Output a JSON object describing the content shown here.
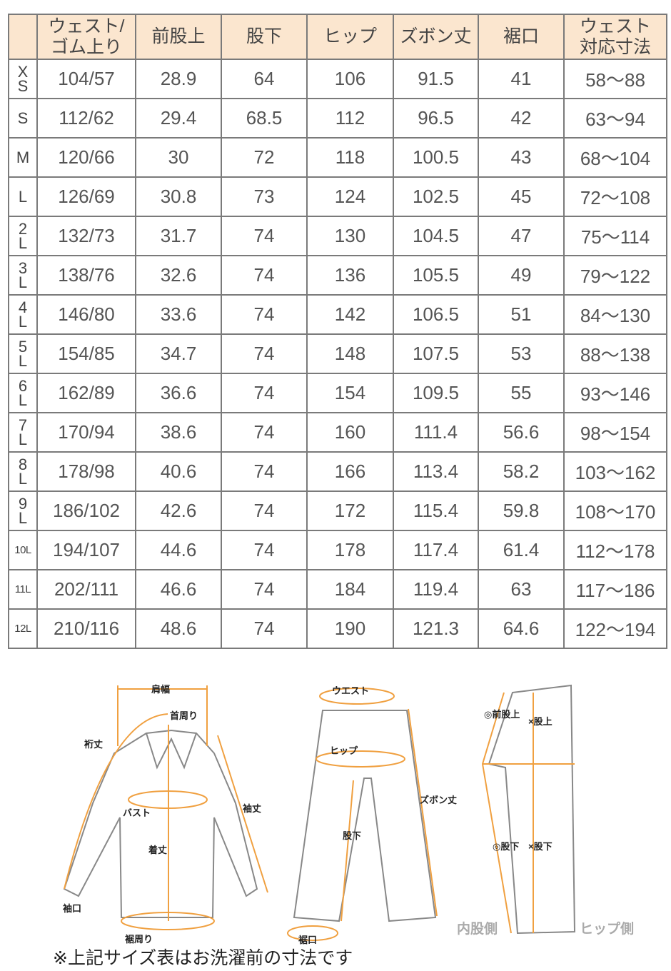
{
  "table": {
    "headers": [
      "",
      "ウェスト/\nゴム上り",
      "前股上",
      "股下",
      "ヒップ",
      "ズボン丈",
      "裾口",
      "ウェスト\n対応寸法"
    ],
    "rows": [
      [
        "XS",
        "104/57",
        "28.9",
        "64",
        "106",
        "91.5",
        "41",
        "58〜88"
      ],
      [
        "S",
        "112/62",
        "29.4",
        "68.5",
        "112",
        "96.5",
        "42",
        "63〜94"
      ],
      [
        "M",
        "120/66",
        "30",
        "72",
        "118",
        "100.5",
        "43",
        "68〜104"
      ],
      [
        "L",
        "126/69",
        "30.8",
        "73",
        "124",
        "102.5",
        "45",
        "72〜108"
      ],
      [
        "2L",
        "132/73",
        "31.7",
        "74",
        "130",
        "104.5",
        "47",
        "75〜114"
      ],
      [
        "3L",
        "138/76",
        "32.6",
        "74",
        "136",
        "105.5",
        "49",
        "79〜122"
      ],
      [
        "4L",
        "146/80",
        "33.6",
        "74",
        "142",
        "106.5",
        "51",
        "84〜130"
      ],
      [
        "5L",
        "154/85",
        "34.7",
        "74",
        "148",
        "107.5",
        "53",
        "88〜138"
      ],
      [
        "6L",
        "162/89",
        "36.6",
        "74",
        "154",
        "109.5",
        "55",
        "93〜146"
      ],
      [
        "7L",
        "170/94",
        "38.6",
        "74",
        "160",
        "111.4",
        "56.6",
        "98〜154"
      ],
      [
        "8L",
        "178/98",
        "40.6",
        "74",
        "166",
        "113.4",
        "58.2",
        "103〜162"
      ],
      [
        "9L",
        "186/102",
        "42.6",
        "74",
        "172",
        "115.4",
        "59.8",
        "108〜170"
      ],
      [
        "10L",
        "194/107",
        "44.6",
        "74",
        "178",
        "117.4",
        "61.4",
        "112〜178"
      ],
      [
        "11L",
        "202/111",
        "46.6",
        "74",
        "184",
        "119.4",
        "63",
        "117〜186"
      ],
      [
        "12L",
        "210/116",
        "48.6",
        "74",
        "190",
        "121.3",
        "64.6",
        "122〜194"
      ]
    ]
  },
  "diagram": {
    "shirt": {
      "shoulder": "肩幅",
      "neck": "首周り",
      "yuki": "裄丈",
      "sleeve": "袖丈",
      "bust": "バスト",
      "length": "着丈",
      "cuff": "袖口",
      "hem": "裾周り"
    },
    "pants": {
      "waist": "ウエスト",
      "hip": "ヒップ",
      "inseam": "股下",
      "length": "ズボン丈",
      "hem": "裾口"
    },
    "side": {
      "front_rise": "◎前股上",
      "rise": "×股上",
      "inseam_inner": "◎股下",
      "inseam": "×股下",
      "inner_side": "内股側",
      "hip_side": "ヒップ側"
    }
  },
  "colors": {
    "header_bg": "#fbe6cf",
    "accent": "#f0a040",
    "border": "#7a7a7a"
  },
  "note": "※上記サイズ表はお洗濯前の寸法です"
}
